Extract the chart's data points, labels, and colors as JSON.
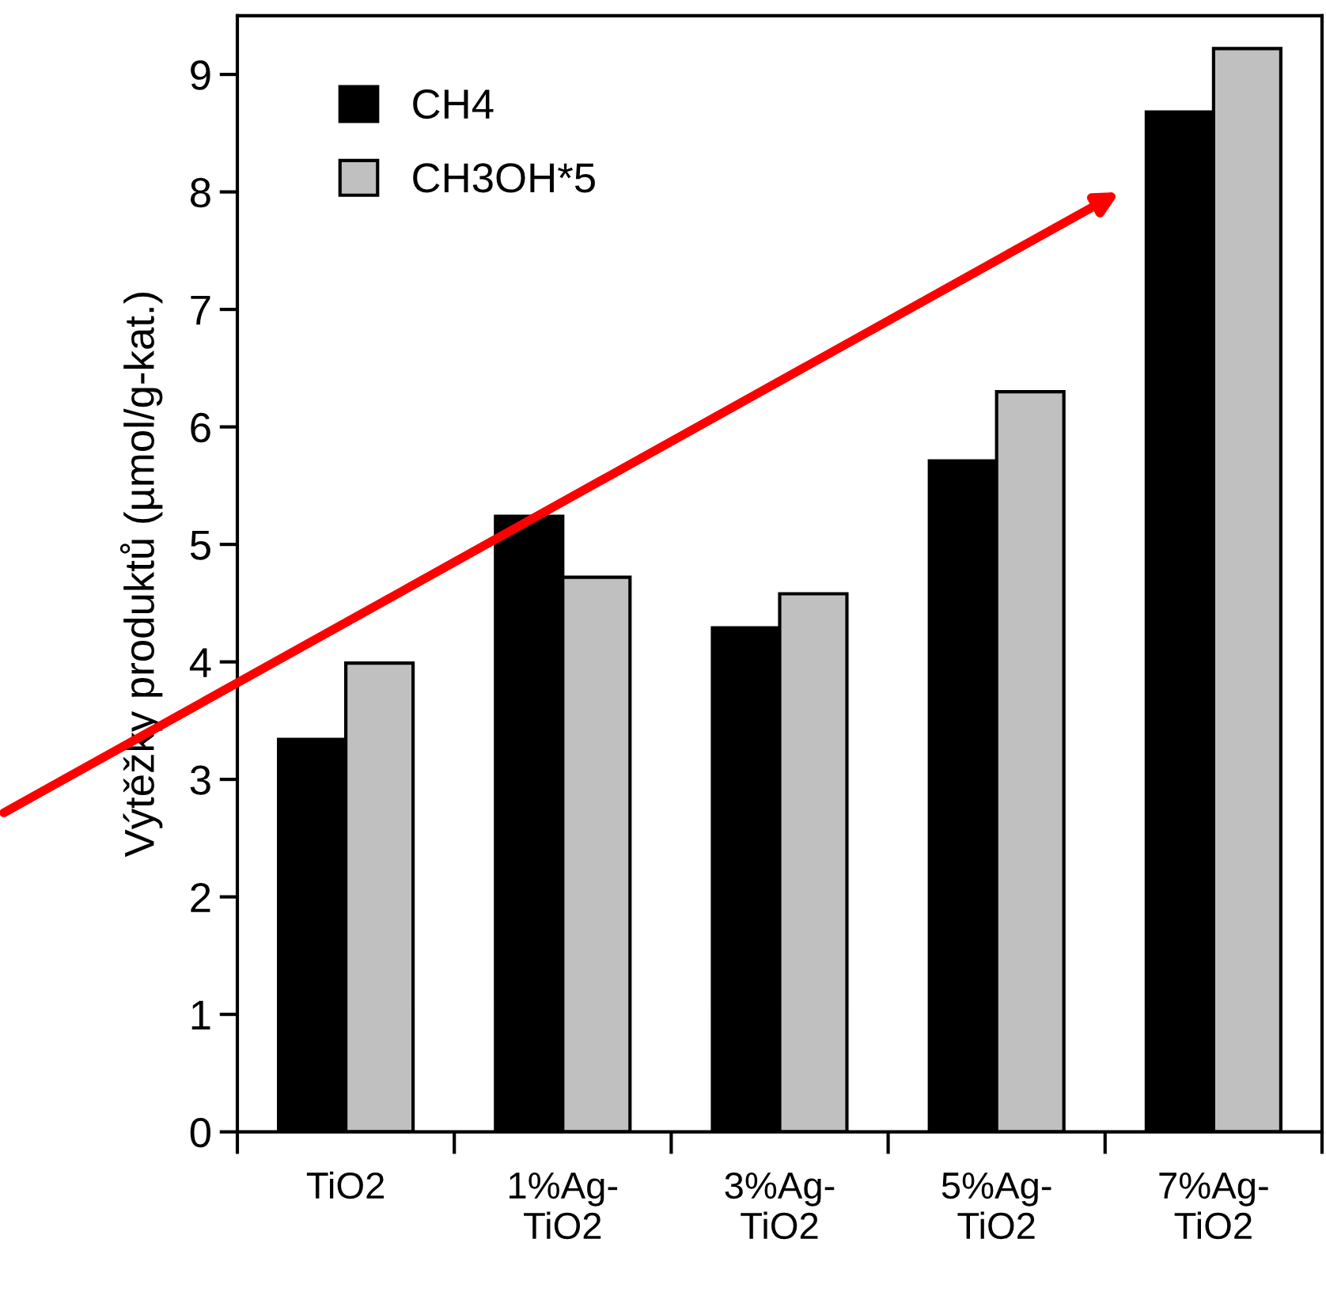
{
  "chart_data": {
    "type": "bar",
    "ylabel": "Výtěžky produktů (µmol/g-kat.)",
    "categories": [
      "TiO2",
      "1%Ag-\nTiO2",
      "3%Ag-\nTiO2",
      "5%Ag-\nTiO2",
      "7%Ag-\nTiO2"
    ],
    "series": [
      {
        "name": "CH4",
        "color": "#000000",
        "values": [
          3.34,
          5.24,
          4.29,
          5.71,
          8.68
        ]
      },
      {
        "name": "CH3OH*5",
        "color": "#c0c0c0",
        "values": [
          3.99,
          4.72,
          4.58,
          6.3,
          9.22
        ]
      }
    ],
    "ylim": [
      0,
      9.5
    ],
    "yticks": [
      0,
      1,
      2,
      3,
      4,
      5,
      6,
      7,
      8,
      9
    ],
    "grid": false,
    "legend": "top left"
  }
}
